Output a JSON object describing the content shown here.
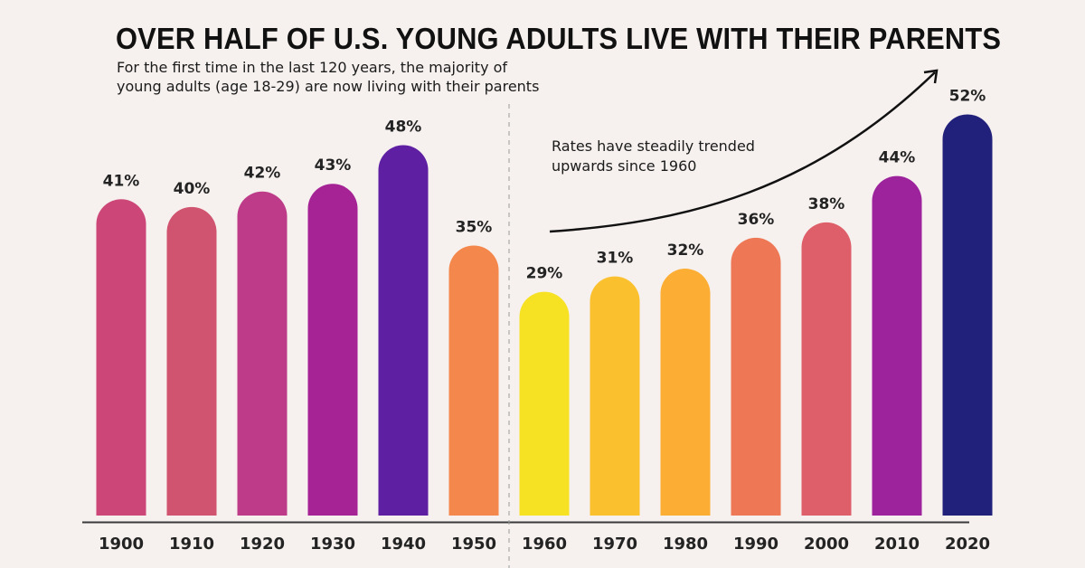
{
  "chart_data": {
    "type": "bar",
    "title": "OVER HALF OF U.S. YOUNG ADULTS LIVE WITH THEIR PARENTS",
    "subtitle": "For the first time in the last 120 years, the majority of young adults (age 18-29) are now living with their parents",
    "subtitle_lines": [
      "For the first time in the last 120 years, the majority of",
      "young adults (age 18-29) are now living with their parents"
    ],
    "annotation": {
      "lines": [
        "Rates have steadily trended",
        "upwards since 1960"
      ],
      "arrow": "trend arrow from 1960 upward toward 2020"
    },
    "xlabel": "",
    "ylabel": "",
    "ylim": [
      0,
      52
    ],
    "grid": false,
    "divider_after": "1950",
    "categories": [
      "1900",
      "1910",
      "1920",
      "1930",
      "1940",
      "1950",
      "1960",
      "1970",
      "1980",
      "1990",
      "2000",
      "2010",
      "2020"
    ],
    "values": [
      41,
      40,
      42,
      43,
      48,
      35,
      29,
      31,
      32,
      36,
      38,
      44,
      52
    ],
    "value_labels": [
      "41%",
      "40%",
      "42%",
      "43%",
      "48%",
      "35%",
      "29%",
      "31%",
      "32%",
      "36%",
      "38%",
      "44%",
      "52%"
    ],
    "unit": "%",
    "colors": [
      "#cc4778",
      "#d05470",
      "#bd3b88",
      "#a52394",
      "#5e1fa3",
      "#f4874b",
      "#f7e123",
      "#fbc02d",
      "#fcae34",
      "#ee7856",
      "#de5f69",
      "#9c239c",
      "#21207a"
    ]
  },
  "colors": {
    "background": "#f6f1ee",
    "text": "#1d1d1d",
    "axis": "#3a3a3a",
    "divider": "#9a9a9a"
  }
}
